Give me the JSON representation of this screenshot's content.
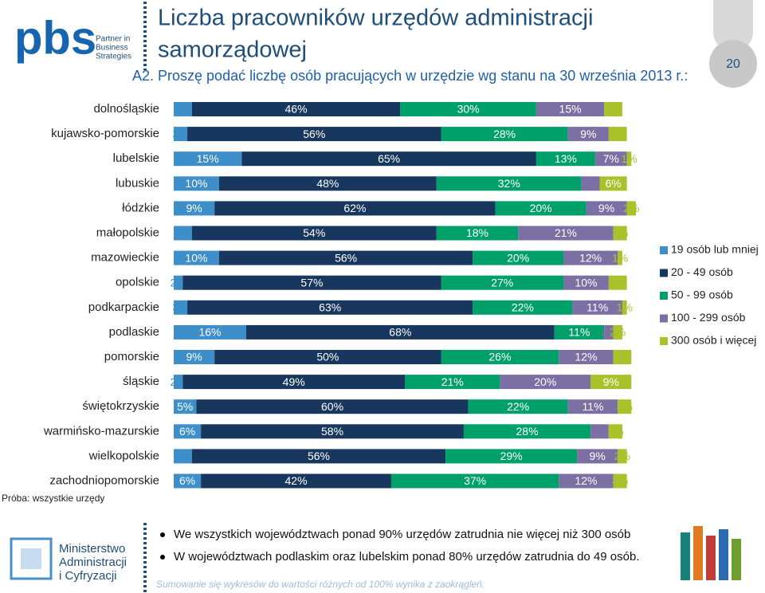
{
  "slide": {
    "logo": "pbs",
    "logo_tagline": [
      "Partner in",
      "Business",
      "Strategies"
    ],
    "title": [
      "Liczba pracowników urzędów administracji",
      "samorządowej"
    ],
    "question": "A2. Proszę podać liczbę osób pracujących w urzędzie wg stanu na 30 września 2013 r.:",
    "page_number": "20",
    "sample": "Próba: wszystkie urzędy",
    "bullets": [
      "We wszystkich województwach ponad 90% urzędów zatrudnia nie więcej niż 300 osób",
      "W województwach podlaskim oraz lubelskim ponad 80% urzędów zatrudnia do 49 osób."
    ],
    "footnote": "Sumowanie się wykresów do wartości różnych od 100% wynika z zaokrągleń.",
    "ministry": [
      "Ministerstwo",
      "Administracji",
      "i Cyfryzacji"
    ]
  },
  "chart_data": {
    "type": "bar",
    "orientation": "horizontal",
    "stacked": true,
    "legend": "right",
    "categories": [
      "dolnośląskie",
      "kujawsko-pomorskie",
      "lubelskie",
      "lubuskie",
      "łódzkie",
      "małopolskie",
      "mazowieckie",
      "opolskie",
      "podkarpackie",
      "podlaskie",
      "pomorskie",
      "śląskie",
      "świętokrzyskie",
      "warmińsko-mazurskie",
      "wielkopolskie",
      "zachodniopomorskie"
    ],
    "series": [
      {
        "name": "19 osób lub mniej",
        "color": "#3d8ec9",
        "values": [
          4,
          3,
          15,
          10,
          9,
          4,
          10,
          2,
          3,
          16,
          9,
          2,
          5,
          6,
          4,
          6
        ],
        "value_labels": [
          "4%",
          "3%",
          "15%",
          "10%",
          "9%",
          "4%",
          "10%",
          "2%",
          "3%",
          "16%",
          "9%",
          "2%",
          "5%",
          "6%",
          "4%",
          "6%"
        ]
      },
      {
        "name": "20 - 49 osób",
        "color": "#17375e",
        "values": [
          46,
          56,
          65,
          48,
          62,
          54,
          56,
          57,
          63,
          68,
          50,
          49,
          60,
          58,
          56,
          42
        ],
        "value_labels": [
          "46%",
          "56%",
          "65%",
          "48%",
          "62%",
          "54%",
          "56%",
          "57%",
          "63%",
          "68%",
          "50%",
          "49%",
          "60%",
          "58%",
          "56%",
          "42%"
        ]
      },
      {
        "name": "50 - 99 osób",
        "color": "#00a06b",
        "values": [
          30,
          28,
          13,
          32,
          20,
          18,
          20,
          27,
          22,
          11,
          26,
          21,
          22,
          28,
          29,
          37
        ],
        "value_labels": [
          "30%",
          "28%",
          "13%",
          "32%",
          "20%",
          "18%",
          "20%",
          "27%",
          "22%",
          "11%",
          "26%",
          "21%",
          "22%",
          "28%",
          "29%",
          "37%"
        ]
      },
      {
        "name": "100 - 299 osób",
        "color": "#7b6fa3",
        "values": [
          15,
          9,
          7,
          4,
          9,
          21,
          12,
          10,
          11,
          2,
          12,
          20,
          11,
          4,
          9,
          12
        ],
        "value_labels": [
          "15%",
          "9%",
          "7%",
          "4%",
          "9%",
          "21%",
          "12%",
          "10%",
          "11%",
          "2%",
          "12%",
          "20%",
          "11%",
          "4%",
          "9%",
          "12%"
        ]
      },
      {
        "name": "300 osób i więcej",
        "color": "#a9c22b",
        "values": [
          4,
          4,
          1,
          6,
          2,
          3,
          1,
          4,
          1,
          2,
          4,
          9,
          3,
          3,
          2,
          3
        ],
        "value_labels": [
          "4%",
          "4%",
          "1%",
          "6%",
          "2%",
          "3%",
          "1%",
          "4%",
          "1%",
          "2%",
          "4%",
          "9%",
          "3%",
          "3%",
          "2%",
          "3%"
        ]
      }
    ]
  }
}
